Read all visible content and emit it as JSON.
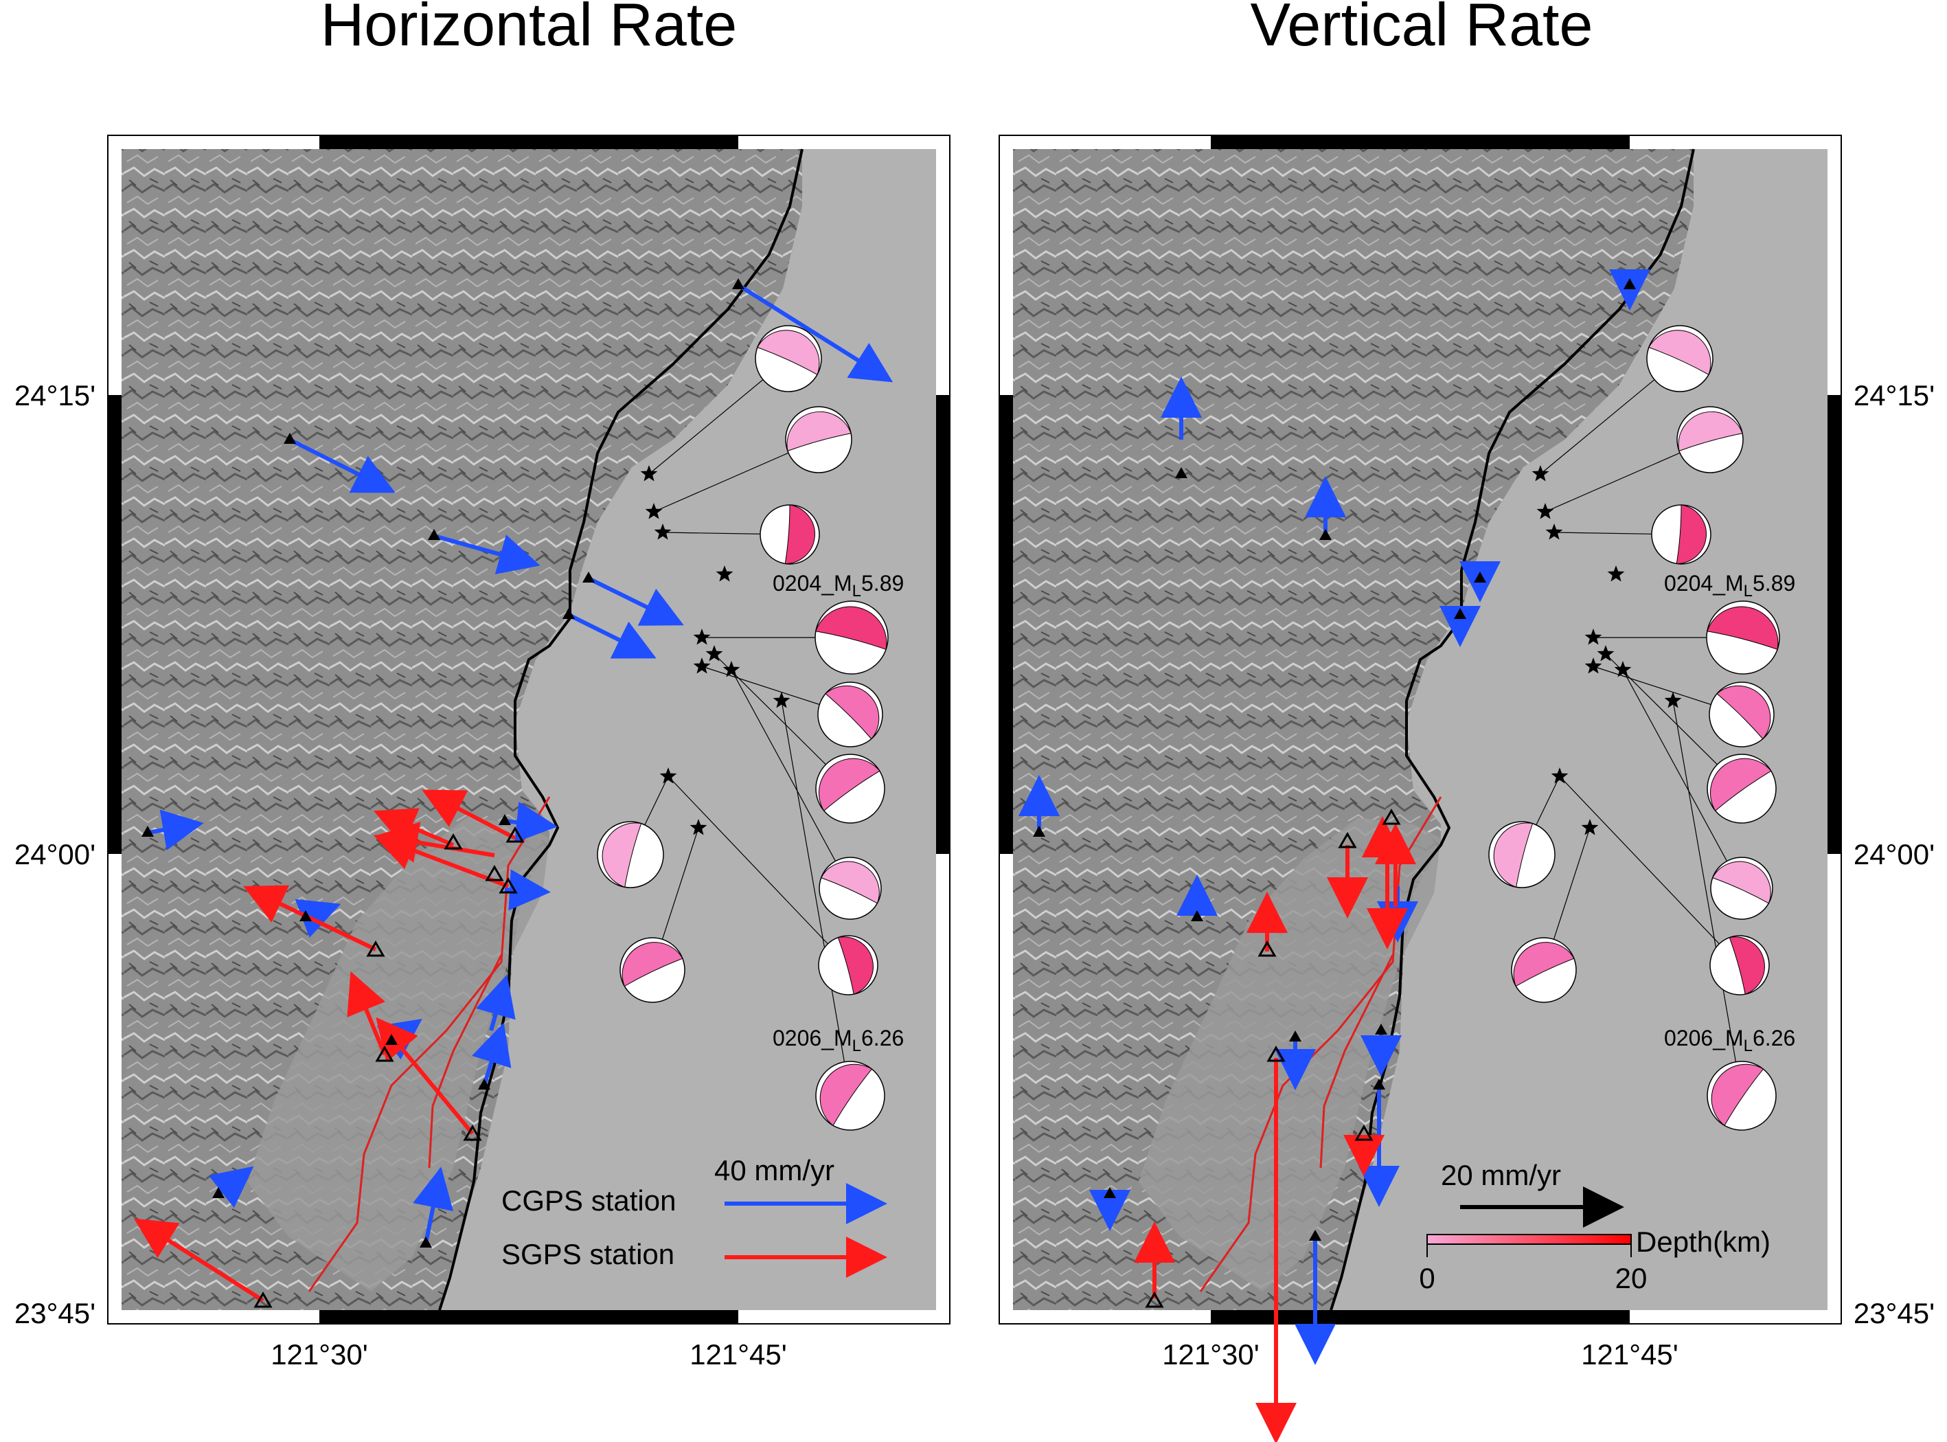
{
  "panels": [
    {
      "id": "horizontal",
      "title": "Horizontal Rate",
      "lat_ticks": [
        "24°15'",
        "24°00'",
        "23°45'"
      ],
      "lon_ticks": [
        "121°30'",
        "121°45'"
      ],
      "lat_tick_side": "left",
      "event_labels": {
        "e0204": "0204_M",
        "e0204_sub": "L",
        "e0204_mag": "5.89",
        "e0206": "0206_M",
        "e0206_sub": "L",
        "e0206_mag": "6.26"
      },
      "legend": {
        "scale_label": "40 mm/yr",
        "cgps_label": "CGPS station",
        "sgps_label": "SGPS station"
      }
    },
    {
      "id": "vertical",
      "title": "Vertical Rate",
      "lat_ticks": [
        "24°15'",
        "24°00'",
        "23°45'"
      ],
      "lon_ticks": [
        "121°30'",
        "121°45'"
      ],
      "lat_tick_side": "right",
      "event_labels": {
        "e0204": "0204_M",
        "e0204_sub": "L",
        "e0204_mag": "5.89",
        "e0206": "0206_M",
        "e0206_sub": "L",
        "e0206_mag": "6.26"
      },
      "legend": {
        "scale_label": "20 mm/yr",
        "depth_label": "Depth(km)",
        "depth_min": "0",
        "depth_max": "20"
      }
    }
  ],
  "colors": {
    "cgps": "#1f4fff",
    "sgps": "#ff1a1a",
    "fault": "#e02020",
    "coast": "#000000",
    "beachball_light": "#f7a8d6",
    "beachball_mid": "#f46fb3",
    "beachball_dark": "#f03a7c",
    "depth_ramp_start": "#f7a8d6",
    "depth_ramp_end": "#ff0000"
  },
  "icons": {
    "cgps_station": "black-filled-triangle",
    "sgps_station": "open-triangle",
    "epicenter": "black-star",
    "focal_mechanism": "beachball"
  }
}
